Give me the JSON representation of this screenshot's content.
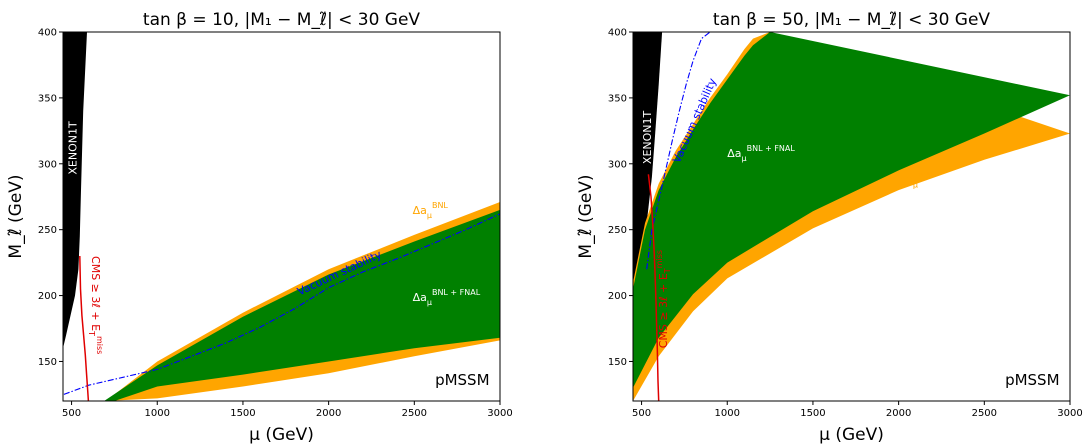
{
  "chart_data": [
    {
      "type": "area",
      "title": "tan β = 10, |M₁ − M_ℓ̃| < 30 GeV",
      "xlabel": "μ (GeV)",
      "ylabel": "M_ℓ̃ (GeV)",
      "xlim": [
        450,
        3000
      ],
      "ylim": [
        120,
        400
      ],
      "xticks": [
        "500",
        "1000",
        "1500",
        "2000",
        "2500",
        "3000"
      ],
      "yticks": [
        "150",
        "200",
        "250",
        "300",
        "350",
        "400"
      ],
      "grid": false,
      "label_pmssm": "pMSSM",
      "regions": [
        {
          "name": "XENON1T",
          "color": "#000000",
          "boundary": [
            [
              450,
              400
            ],
            [
              450,
              160
            ],
            [
              468,
              170
            ],
            [
              520,
              200
            ],
            [
              540,
              220
            ],
            [
              548,
              245
            ],
            [
              555,
              280
            ],
            [
              568,
              340
            ],
            [
              590,
              400
            ]
          ]
        },
        {
          "name": "Δa_μ^BNL",
          "color": "#ffa500",
          "upper": {
            "x": [
              700,
              1000,
              1500,
              2000,
              2500,
              3000
            ],
            "y": [
              120,
              150,
              187,
              220,
              246,
              271
            ]
          },
          "lower": {
            "x": [
              690,
              1000,
              1500,
              2000,
              2500,
              3000
            ],
            "y": [
              120,
              122,
              131,
              141,
              154,
              166
            ]
          }
        },
        {
          "name": "Δa_μ^BNL+FNAL",
          "color": "#008000",
          "upper": {
            "x": [
              690,
              1000,
              1500,
              2000,
              2500,
              3000
            ],
            "y": [
              120,
              147,
              184,
              216,
              241,
              265
            ]
          },
          "lower": {
            "x": [
              750,
              1000,
              1500,
              2000,
              2500,
              3000
            ],
            "y": [
              120,
              131,
              140,
              150,
              160,
              168
            ]
          }
        }
      ],
      "lines": [
        {
          "name": "Vacuum stability",
          "color": "#0000ff",
          "style": "dashdot",
          "x": [
            455,
            600,
            800,
            1000,
            1200,
            1400,
            1600,
            1800,
            2000,
            2200,
            2400,
            2600,
            2800,
            3000
          ],
          "y": [
            125,
            132,
            138,
            144,
            154,
            164,
            176,
            190,
            206,
            218,
            228,
            239,
            250,
            262
          ]
        },
        {
          "name": "CMS ≥ 3ℓ + E_T^miss",
          "color": "#e00000",
          "style": "solid",
          "x": [
            548,
            552,
            560,
            570,
            580,
            588,
            594,
            598
          ],
          "y": [
            230,
            205,
            185,
            170,
            155,
            140,
            128,
            120
          ]
        }
      ],
      "annotations": {
        "xenon": "XENON1T",
        "vacuum": "Vacuum stability",
        "cms_main": "CMS ≥ 3ℓ + E",
        "cms_sub": "T",
        "cms_sup": "miss",
        "bnl_main": "Δa",
        "bnl_sub": "μ",
        "bnl_sup": "BNL",
        "fnal_main": "Δa",
        "fnal_sub": "μ",
        "fnal_sup": "BNL + FNAL"
      }
    },
    {
      "type": "area",
      "title": "tan β = 50, |M₁ − M_ℓ̃| < 30 GeV",
      "xlabel": "μ (GeV)",
      "ylabel": "M_ℓ̃ (GeV)",
      "xlim": [
        450,
        3000
      ],
      "ylim": [
        120,
        400
      ],
      "xticks": [
        "500",
        "1000",
        "1500",
        "2000",
        "2500",
        "3000"
      ],
      "yticks": [
        "150",
        "200",
        "250",
        "300",
        "350",
        "400"
      ],
      "grid": false,
      "label_pmssm": "pMSSM",
      "regions": [
        {
          "name": "XENON1T",
          "color": "#000000",
          "boundary": [
            [
              450,
              400
            ],
            [
              450,
              195
            ],
            [
              530,
              255
            ],
            [
              560,
              290
            ],
            [
              578,
              320
            ],
            [
              600,
              360
            ],
            [
              620,
              400
            ]
          ]
        },
        {
          "name": "Δa_μ^BNL",
          "color": "#ffa500",
          "upper": {
            "x": [
              450,
              520,
              600,
              700,
              800,
              900,
              1000,
              1100,
              1150,
              1250
            ],
            "y": [
              210,
              255,
              285,
              310,
              330,
              350,
              368,
              387,
              395,
              400
            ]
          },
          "lower": {
            "x": [
              450,
              600,
              800,
              1000,
              1500,
              2000,
              2500,
              3000
            ],
            "y": [
              120,
              154,
              188,
              213,
              251,
              280,
              303,
              323
            ]
          }
        },
        {
          "name": "Δa_μ^BNL+FNAL",
          "color": "#008000",
          "upper": {
            "x": [
              450,
              520,
              600,
              700,
              800,
              900,
              1000,
              1100,
              1150,
              1250
            ],
            "y": [
              205,
              250,
              280,
              305,
              326,
              346,
              364,
              382,
              390,
              400
            ]
          },
          "lower": {
            "x": [
              450,
              600,
              800,
              1000,
              1500,
              2000,
              2500,
              3000
            ],
            "y": [
              130,
              168,
              201,
              225,
              264,
              295,
              323,
              352
            ]
          }
        }
      ],
      "lines": [
        {
          "name": "Vacuum stability",
          "color": "#0000ff",
          "style": "dashdot",
          "x": [
            530,
            560,
            600,
            640,
            680,
            720,
            760,
            800,
            850,
            900,
            960,
            1000
          ],
          "y": [
            220,
            250,
            272,
            295,
            318,
            340,
            360,
            378,
            395,
            400,
            400,
            400
          ]
        },
        {
          "name": "CMS ≥ 3ℓ + E_T^miss",
          "color": "#e00000",
          "style": "solid",
          "x": [
            540,
            555,
            565,
            572,
            578,
            583,
            588,
            592,
            596,
            600
          ],
          "y": [
            292,
            275,
            255,
            238,
            220,
            200,
            178,
            160,
            135,
            120
          ]
        }
      ],
      "annotations": {
        "xenon": "XENON1T",
        "vacuum": "Vacuum stability",
        "cms_main": "CMS ≥ 3ℓ + E",
        "cms_sub": "T",
        "cms_sup": "miss",
        "bnl_main": "Δa",
        "bnl_sub": "μ",
        "bnl_sup": "BNL",
        "fnal_main": "Δa",
        "fnal_sub": "μ",
        "fnal_sup": "BNL + FNAL"
      }
    }
  ],
  "colors": {
    "xenon": "#000000",
    "bnl": "#ffa500",
    "fnal": "#008000",
    "vacuum": "#0000ff",
    "cms": "#e00000"
  }
}
